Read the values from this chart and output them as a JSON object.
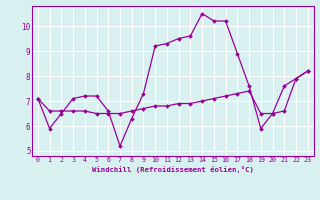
{
  "xlabel": "Windchill (Refroidissement éolien,°C)",
  "x": [
    0,
    1,
    2,
    3,
    4,
    5,
    6,
    7,
    8,
    9,
    10,
    11,
    12,
    13,
    14,
    15,
    16,
    17,
    18,
    19,
    20,
    21,
    22,
    23
  ],
  "line1_y": [
    7.1,
    5.9,
    6.5,
    7.1,
    7.2,
    7.2,
    6.6,
    5.2,
    6.3,
    7.3,
    9.2,
    9.3,
    9.5,
    9.6,
    10.5,
    10.2,
    10.2,
    8.9,
    7.6,
    5.9,
    6.5,
    7.6,
    7.9,
    8.2
  ],
  "line2_y": [
    7.1,
    6.6,
    6.6,
    6.6,
    6.6,
    6.5,
    6.5,
    6.5,
    6.6,
    6.7,
    6.8,
    6.8,
    6.9,
    6.9,
    7.0,
    7.1,
    7.2,
    7.3,
    7.4,
    6.5,
    6.5,
    6.6,
    7.9,
    8.2
  ],
  "line_color": "#990099",
  "bg_color": "#d9f0f0",
  "grid_color": "#ffffff",
  "ylim": [
    4.8,
    10.8
  ],
  "xlim": [
    -0.5,
    23.5
  ],
  "yticks": [
    5,
    6,
    7,
    8,
    9,
    10
  ],
  "xticks": [
    0,
    1,
    2,
    3,
    4,
    5,
    6,
    7,
    8,
    9,
    10,
    11,
    12,
    13,
    14,
    15,
    16,
    17,
    18,
    19,
    20,
    21,
    22,
    23
  ]
}
